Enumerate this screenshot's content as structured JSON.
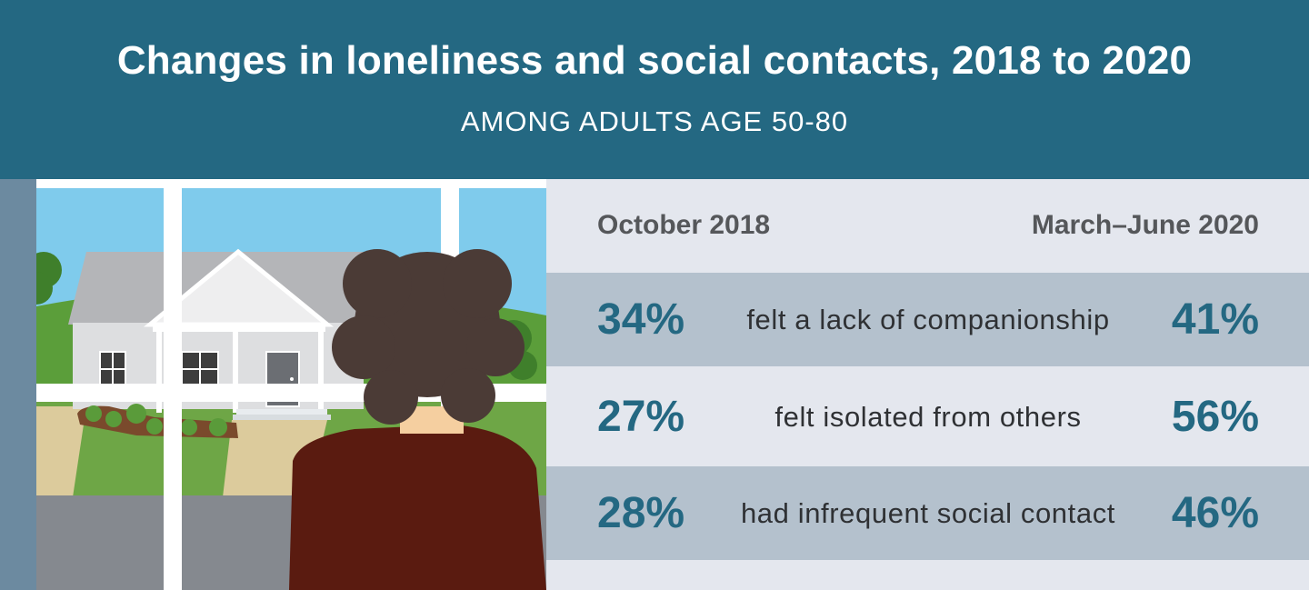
{
  "header": {
    "title": "Changes in loneliness and social contacts, 2018 to 2020",
    "subtitle": "AMONG ADULTS AGE 50-80"
  },
  "columns": {
    "left": "October 2018",
    "right": "March–June 2020"
  },
  "rows": [
    {
      "before": "34%",
      "label": "felt a lack of companionship",
      "after": "41%"
    },
    {
      "before": "27%",
      "label": "felt isolated from others",
      "after": "56%"
    },
    {
      "before": "28%",
      "label": "had infrequent social contact",
      "after": "46%"
    }
  ],
  "colors": {
    "header_bg": "#246882",
    "accent_pct": "#246882",
    "row_shaded": "#b4c1cd",
    "row_light": "#e4e7ee"
  }
}
